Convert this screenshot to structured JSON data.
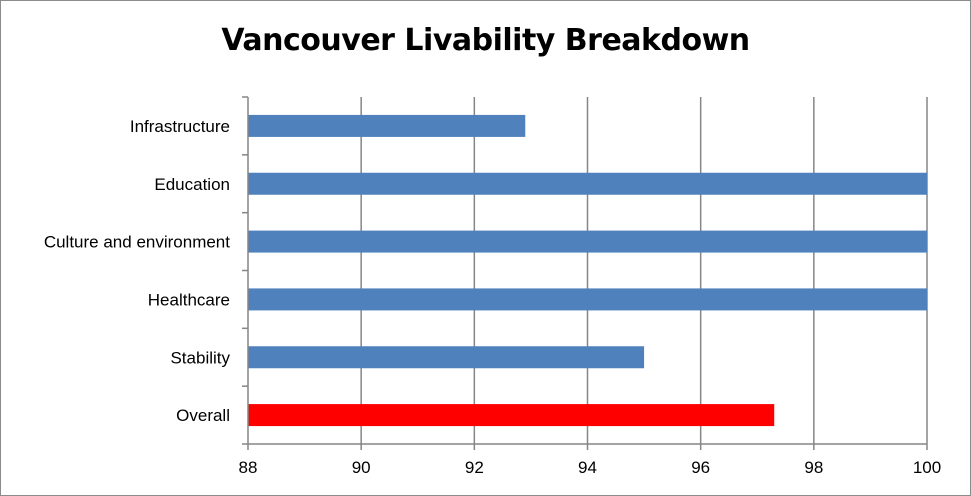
{
  "chart_data": {
    "type": "bar",
    "orientation": "horizontal",
    "title": "Vancouver Livability Breakdown",
    "xlabel": "",
    "ylabel": "",
    "categories": [
      "Infrastructure",
      "Education",
      "Culture and environment",
      "Healthcare",
      "Stability",
      "Overall"
    ],
    "values": [
      92.9,
      100,
      100,
      100,
      95.0,
      97.3
    ],
    "colors": [
      "#4f81bd",
      "#4f81bd",
      "#4f81bd",
      "#4f81bd",
      "#4f81bd",
      "#ff0000"
    ],
    "xlim": [
      88,
      100
    ],
    "xticks": [
      88,
      90,
      92,
      94,
      96,
      98,
      100
    ],
    "grid": "vertical",
    "legend": "none"
  }
}
